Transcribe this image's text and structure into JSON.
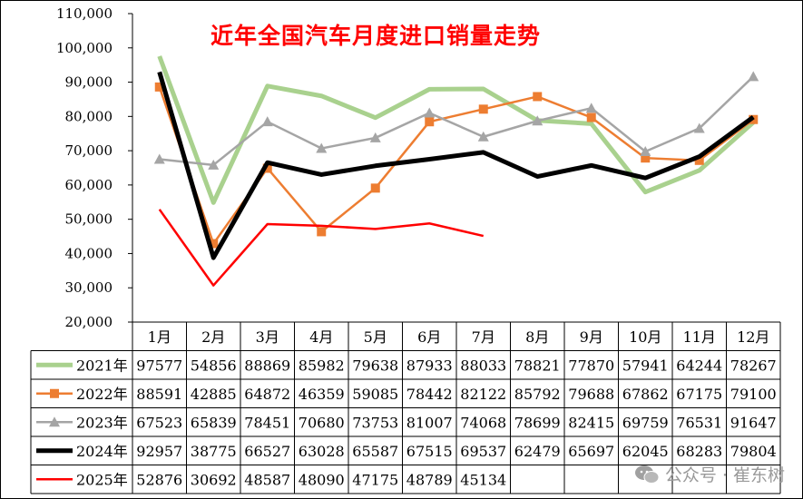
{
  "title": "近年全国汽车月度进口销量走势",
  "watermark": "公众号 · 崔东树",
  "chart_data": {
    "type": "line",
    "title": "近年全国汽车月度进口销量走势",
    "categories": [
      "1月",
      "2月",
      "3月",
      "4月",
      "5月",
      "6月",
      "7月",
      "8月",
      "9月",
      "10月",
      "11月",
      "12月"
    ],
    "ylim": [
      20000,
      110000
    ],
    "yticks": [
      "20,000",
      "30,000",
      "40,000",
      "50,000",
      "60,000",
      "70,000",
      "80,000",
      "90,000",
      "100,000",
      "110,000"
    ],
    "grid": false,
    "legend": "data-table-left",
    "series": [
      {
        "name": "2021年",
        "color": "#a9d18e",
        "marker": "none",
        "values": [
          97577,
          54856,
          88869,
          85982,
          79638,
          87933,
          88033,
          78821,
          77870,
          57941,
          64244,
          78267
        ]
      },
      {
        "name": "2022年",
        "color": "#ed7d31",
        "marker": "square",
        "values": [
          88591,
          42885,
          64872,
          46359,
          59085,
          78442,
          82122,
          85792,
          79688,
          67862,
          67175,
          79100
        ]
      },
      {
        "name": "2023年",
        "color": "#a5a5a5",
        "marker": "triangle",
        "values": [
          67523,
          65839,
          78451,
          70680,
          73753,
          81007,
          74068,
          78699,
          82415,
          69759,
          76531,
          91647
        ]
      },
      {
        "name": "2024年",
        "color": "#000000",
        "marker": "none",
        "values": [
          92957,
          38775,
          66527,
          63028,
          65587,
          67515,
          69537,
          62479,
          65697,
          62045,
          68283,
          79804
        ]
      },
      {
        "name": "2025年",
        "color": "#ff0000",
        "marker": "none",
        "values": [
          52876,
          30692,
          48587,
          48090,
          47175,
          48789,
          45134,
          null,
          null,
          null,
          null,
          null
        ]
      }
    ]
  }
}
